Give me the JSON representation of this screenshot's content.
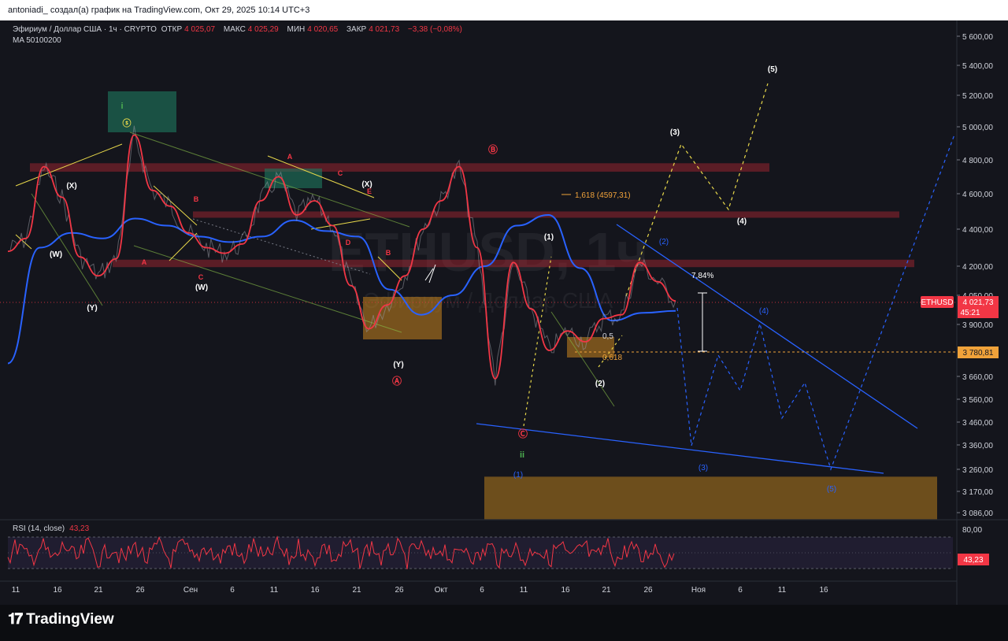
{
  "header": {
    "title": "antoniadi_ создал(а) график на TradingView.com, Окт 29, 2025 10:14 UTC+3"
  },
  "legend": {
    "symbol": "Эфириум / Доллар США · 1ч · CRYPTO",
    "open_label": "ОТКР",
    "open": "4 025,07",
    "high_label": "МАКС",
    "high": "4 025,29",
    "low_label": "МИН",
    "low": "4 020,65",
    "close_label": "ЗАКР",
    "close": "4 021,73",
    "change": "−3,38 (−0,08%)",
    "ma": "MA 50100200"
  },
  "watermark": {
    "ticker": "ETHUSD, 1ч",
    "name": "Эфириум / Доллар США"
  },
  "price_tag": {
    "symbol": "ETHUSD",
    "price": "4 021,73",
    "countdown": "45:21"
  },
  "level_tag": {
    "price": "3 780,81"
  },
  "rsi": {
    "label": "RSI (14, close)",
    "value": "43,23",
    "upper_label": "80,00"
  },
  "annotations": {
    "fib_1618": "1,618 (4597,31)",
    "fib_05": "0,5",
    "fib_0618": "0,618",
    "pct_move": "7,84%",
    "waves": [
      "i",
      "ⓢ",
      "(X)",
      "(W)",
      "(Y)",
      "(W)",
      "(X)",
      "(Y)",
      "A",
      "B",
      "C",
      "D",
      "E",
      "A",
      "B",
      "C",
      "Ⓐ",
      "Ⓑ",
      "Ⓒ",
      "ii",
      "(1)",
      "(2)",
      "(3)",
      "(4)",
      "(5)"
    ]
  },
  "footer": {
    "brand": "TradingView"
  },
  "chart_data": {
    "type": "line",
    "title": "Эфириум / Доллар США · 1ч · CRYPTO",
    "y_axis_labels": [
      "5 600,00",
      "5 400,00",
      "5 200,00",
      "5 000,00",
      "4 800,00",
      "4 600,00",
      "4 400,00",
      "4 200,00",
      "4 050,00",
      "3 900,00",
      "3 660,00",
      "3 560,00",
      "3 460,00",
      "3 360,00",
      "3 260,00",
      "3 170,00",
      "3 086,00"
    ],
    "x_axis_labels": [
      "11",
      "16",
      "21",
      "26",
      "Сен",
      "6",
      "11",
      "16",
      "21",
      "26",
      "Окт",
      "6",
      "11",
      "16",
      "21",
      "26",
      "Ноя",
      "6",
      "11",
      "16"
    ],
    "ylim": [
      3020,
      5680
    ],
    "current_price": 4021.73,
    "horizontal_level": 3780.81,
    "resistance_zones": [
      [
        4730,
        4780
      ],
      [
        4465,
        4500
      ],
      [
        4195,
        4235
      ]
    ],
    "support_zone": [
      3060,
      3230
    ],
    "series": [
      {
        "name": "ETHUSD",
        "color": "#f23645",
        "x": [
          "08-09",
          "08-11",
          "08-13",
          "08-15",
          "08-17",
          "08-19",
          "08-21",
          "08-23",
          "08-25",
          "08-27",
          "08-30",
          "09-02",
          "09-05",
          "09-08",
          "09-11",
          "09-13",
          "09-16",
          "09-18",
          "09-20",
          "09-23",
          "09-25",
          "09-27",
          "09-30",
          "10-03",
          "10-06",
          "10-08",
          "10-10",
          "10-11",
          "10-13",
          "10-15",
          "10-17",
          "10-19",
          "10-21",
          "10-23",
          "10-25",
          "10-27",
          "10-28",
          "10-29"
        ],
        "values": [
          4280,
          4350,
          4760,
          4580,
          4250,
          4150,
          4240,
          4950,
          4620,
          4530,
          4380,
          4300,
          4270,
          4320,
          4560,
          4700,
          4480,
          4560,
          4420,
          4100,
          3880,
          4000,
          4150,
          4400,
          4560,
          4760,
          4300,
          3650,
          4220,
          3980,
          3780,
          3870,
          3820,
          3930,
          3950,
          4220,
          4120,
          4021
        ]
      }
    ],
    "moving_average": {
      "name": "MA",
      "color": "#2962ff",
      "values": [
        3720,
        4300,
        4380,
        4350,
        4460,
        4420,
        4360,
        4330,
        4360,
        4450,
        4390,
        4360,
        4080,
        3950,
        4050,
        4200,
        4420,
        4480,
        4190,
        3920,
        3960,
        3970
      ]
    }
  }
}
